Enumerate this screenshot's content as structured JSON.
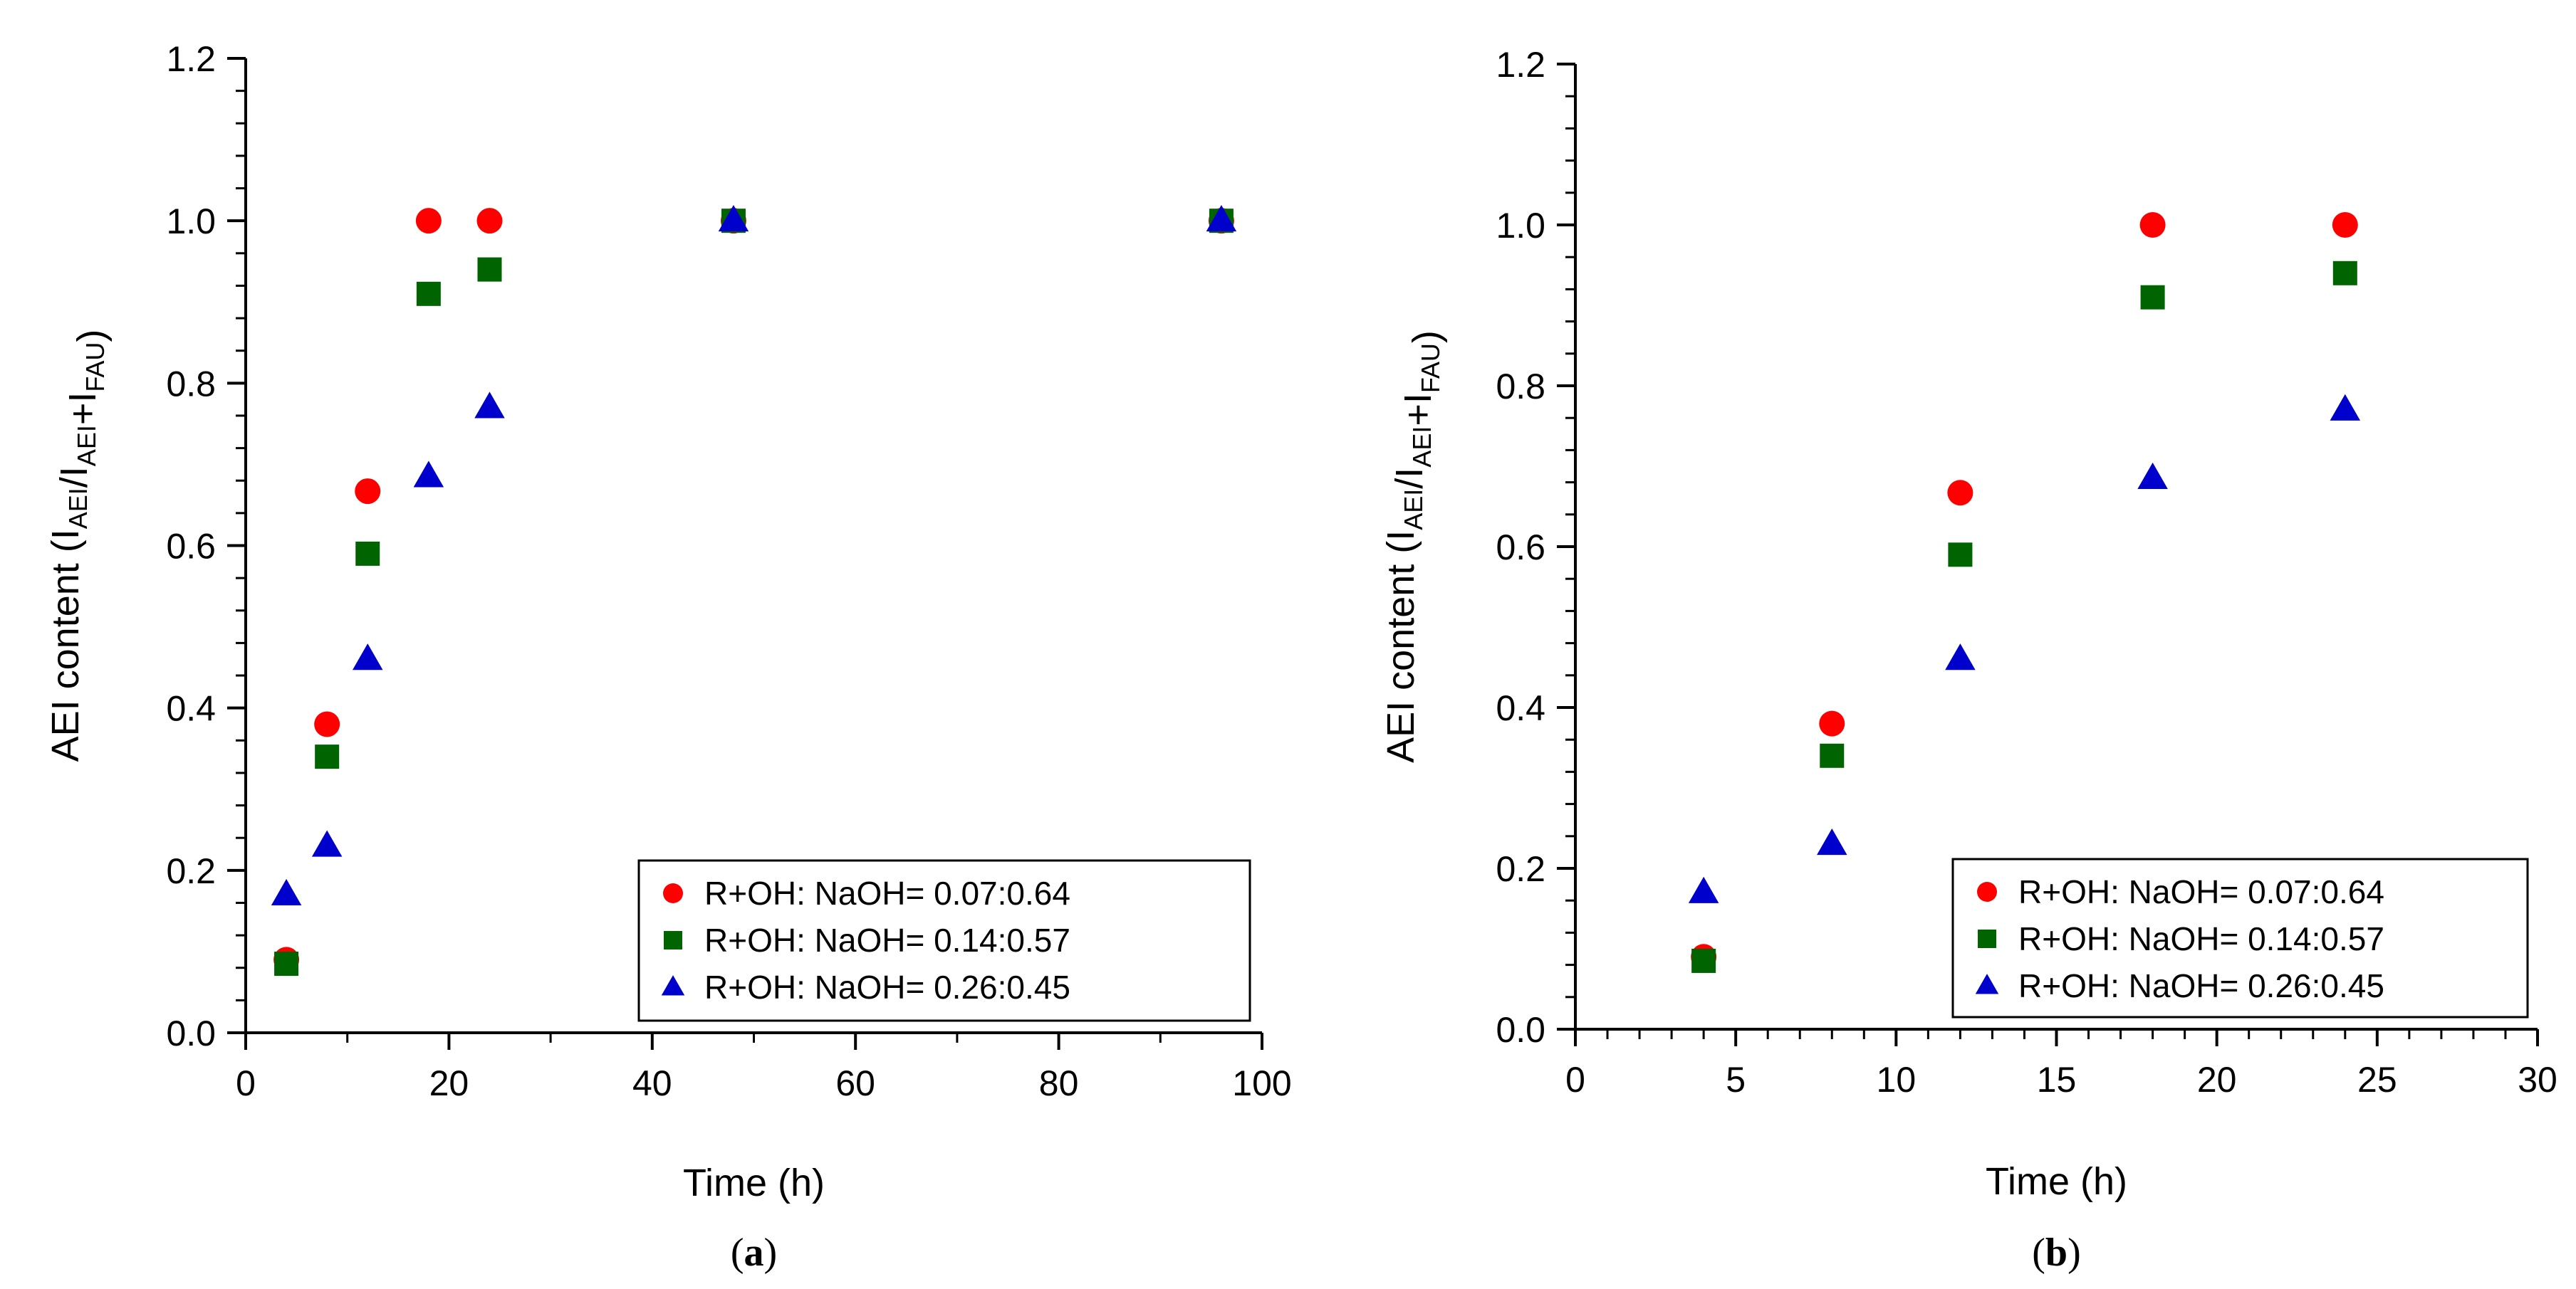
{
  "chart_data": [
    {
      "type": "scatter",
      "caption": {
        "open": "(",
        "letter": "a",
        "close": ")"
      },
      "xlabel": "Time (h)",
      "ylabel": {
        "main": "AEI content (I",
        "sub1": "AEI",
        "mid1": "/I",
        "sub2": "AEI",
        "mid2": "+I",
        "sub3": "FAU",
        "end": ")"
      },
      "xlim": [
        0,
        100
      ],
      "ylim": [
        0,
        1.2
      ],
      "xticks": [
        "0",
        "20",
        "40",
        "60",
        "80",
        "100"
      ],
      "yticks": [
        "0.0",
        "0.2",
        "0.4",
        "0.6",
        "0.8",
        "1.0",
        "1.2"
      ],
      "legend_position": "bottom-right",
      "series": [
        {
          "name": "R+OH: NaOH= 0.07:0.64",
          "marker": "circle",
          "color": "#ff0000",
          "x": [
            4,
            8,
            12,
            18,
            24,
            48,
            96
          ],
          "y": [
            0.09,
            0.38,
            0.667,
            1.0,
            1.0,
            1.0,
            1.0
          ]
        },
        {
          "name": "R+OH: NaOH= 0.14:0.57",
          "marker": "square",
          "color": "#006400",
          "x": [
            4,
            8,
            12,
            18,
            24,
            48,
            96
          ],
          "y": [
            0.085,
            0.34,
            0.59,
            0.91,
            0.94,
            1.0,
            1.0
          ]
        },
        {
          "name": "R+OH: NaOH= 0.26:0.45",
          "marker": "triangle",
          "color": "#0000cc",
          "x": [
            4,
            8,
            12,
            18,
            24,
            48,
            96
          ],
          "y": [
            0.17,
            0.23,
            0.46,
            0.685,
            0.77,
            1.0,
            1.0
          ]
        }
      ]
    },
    {
      "type": "scatter",
      "caption": {
        "open": "(",
        "letter": "b",
        "close": ")"
      },
      "xlabel": "Time (h)",
      "ylabel": {
        "main": "AEI content (I",
        "sub1": "AEI",
        "mid1": "/I",
        "sub2": "AEI",
        "mid2": "+I",
        "sub3": "FAU",
        "end": ")"
      },
      "xlim": [
        0,
        30
      ],
      "ylim": [
        0,
        1.2
      ],
      "xticks": [
        "0",
        "5",
        "10",
        "15",
        "20",
        "25",
        "30"
      ],
      "yticks": [
        "0.0",
        "0.2",
        "0.4",
        "0.6",
        "0.8",
        "1.0",
        "1.2"
      ],
      "legend_position": "bottom-right",
      "series": [
        {
          "name": "R+OH: NaOH= 0.07:0.64",
          "marker": "circle",
          "color": "#ff0000",
          "x": [
            4,
            8,
            12,
            18,
            24
          ],
          "y": [
            0.09,
            0.38,
            0.667,
            1.0,
            1.0
          ]
        },
        {
          "name": "R+OH: NaOH= 0.14:0.57",
          "marker": "square",
          "color": "#006400",
          "x": [
            4,
            8,
            12,
            18,
            24
          ],
          "y": [
            0.085,
            0.34,
            0.59,
            0.91,
            0.94
          ]
        },
        {
          "name": "R+OH: NaOH= 0.26:0.45",
          "marker": "triangle",
          "color": "#0000cc",
          "x": [
            4,
            8,
            12,
            18,
            24
          ],
          "y": [
            0.17,
            0.23,
            0.46,
            0.685,
            0.77
          ]
        }
      ]
    }
  ]
}
